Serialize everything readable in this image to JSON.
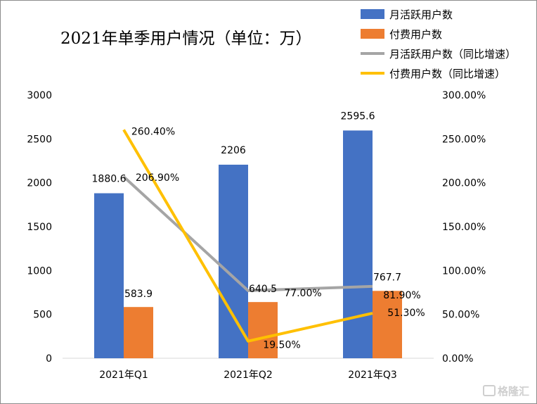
{
  "chart_data": {
    "type": "bar",
    "title": "2021年单季用户情况（单位：万）",
    "categories": [
      "2021年Q1",
      "2021年Q2",
      "2021年Q3"
    ],
    "ylim": [
      0,
      3000
    ],
    "yticks": [
      "0",
      "500",
      "1000",
      "1500",
      "2000",
      "2500",
      "3000"
    ],
    "y2lim": [
      0,
      300
    ],
    "y2ticks": [
      "0.00%",
      "50.00%",
      "100.00%",
      "150.00%",
      "200.00%",
      "250.00%",
      "300.00%"
    ],
    "legend_position": "top-right",
    "series": [
      {
        "name": "月活跃用户数",
        "kind": "bar",
        "axis": "left",
        "color": "#4472C4",
        "values": [
          1880.6,
          2206,
          2595.6
        ],
        "labels": [
          "1880.6",
          "2206",
          "2595.6"
        ]
      },
      {
        "name": "付费用户数",
        "kind": "bar",
        "axis": "left",
        "color": "#ED7D31",
        "values": [
          583.9,
          640.5,
          767.7
        ],
        "labels": [
          "583.9",
          "640.5",
          "767.7"
        ]
      },
      {
        "name": "月活跃用户数（同比增速）",
        "kind": "line",
        "axis": "right",
        "color": "#A5A5A5",
        "values": [
          206.9,
          77.0,
          81.9
        ],
        "labels": [
          "206.90%",
          "77.00%",
          "81.90%"
        ]
      },
      {
        "name": "付费用户数（同比增速）",
        "kind": "line",
        "axis": "right",
        "color": "#FFC000",
        "values": [
          260.4,
          19.5,
          51.3
        ],
        "labels": [
          "260.40%",
          "19.50%",
          "51.30%"
        ]
      }
    ]
  },
  "watermark": "格隆汇"
}
